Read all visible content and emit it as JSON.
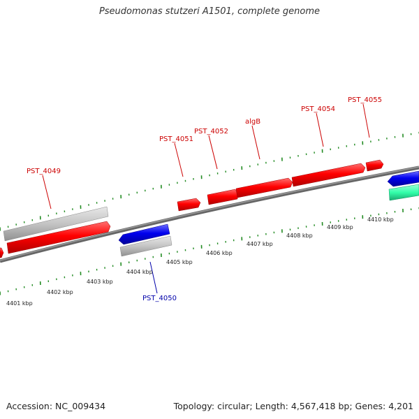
{
  "title": "Pseudomonas stutzeri A1501, complete genome",
  "accession": "Accession: NC_009434",
  "summary": "Topology: circular; Length: 4,567,418 bp; Genes: 4,201",
  "kbp_labels": [
    "4401 kbp",
    "4402 kbp",
    "4403 kbp",
    "4404 kbp",
    "4405 kbp",
    "4406 kbp",
    "4407 kbp",
    "4408 kbp",
    "4409 kbp",
    "4410 kbp"
  ],
  "gene_labels": [
    "PST_4049",
    "PST_4050",
    "PST_4051",
    "PST_4052",
    "algB",
    "PST_4054",
    "PST_4055"
  ],
  "colors": {
    "forward_gene": "#ff0000",
    "reverse_gene": "#0000ee",
    "pseudo_gene": "#c0c0c0",
    "rna_gene": "#33ffaa",
    "backbone": "#777777",
    "tick": "#228b22",
    "forward_label": "#cc0000",
    "reverse_label": "#0000aa"
  }
}
